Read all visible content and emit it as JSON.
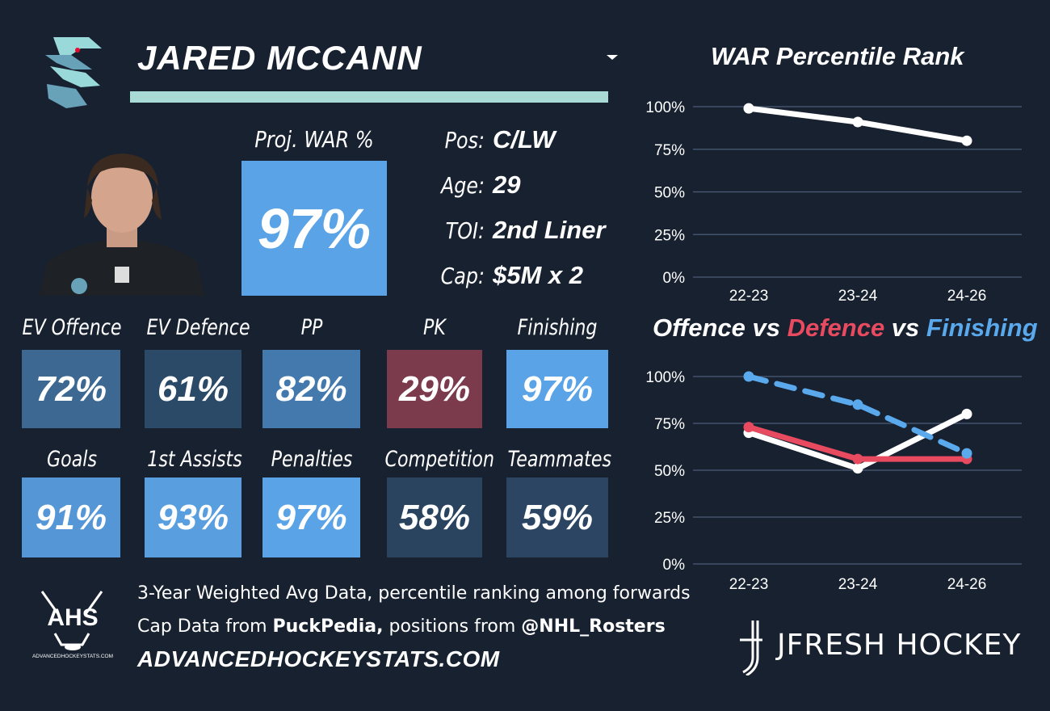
{
  "player": {
    "name": "JARED MCCANN",
    "proj_war_label": "Proj. WAR %",
    "proj_war_value": "97%",
    "info": [
      {
        "label": "Pos:",
        "value": "C/LW"
      },
      {
        "label": "Age:",
        "value": "29"
      },
      {
        "label": "TOI:",
        "value": "2nd Liner"
      },
      {
        "label": "Cap:",
        "value": "$5M x 2"
      }
    ]
  },
  "stats_row1": [
    {
      "label": "EV Offence",
      "value": "72%",
      "color": "#3c6891"
    },
    {
      "label": "EV Defence",
      "value": "61%",
      "color": "#2b4a68"
    },
    {
      "label": "PP",
      "value": "82%",
      "color": "#4379ad"
    },
    {
      "label": "PK",
      "value": "29%",
      "color": "#7b3b4d"
    },
    {
      "label": "Finishing",
      "value": "97%",
      "color": "#5aa3e6"
    }
  ],
  "stats_row2": [
    {
      "label": "Goals",
      "value": "91%",
      "color": "#5597d6"
    },
    {
      "label": "1st Assists",
      "value": "93%",
      "color": "#599fe0"
    },
    {
      "label": "Penalties",
      "value": "97%",
      "color": "#5aa3e6"
    },
    {
      "label": "Competition",
      "value": "58%",
      "color": "#2a4460"
    },
    {
      "label": "Teammates",
      "value": "59%",
      "color": "#2b4562"
    }
  ],
  "footer": {
    "line1": "3-Year Weighted Avg Data, percentile ranking among forwards",
    "line2_prefix": "Cap Data from ",
    "line2_bold1": "PuckPedia,",
    "line2_mid": " positions from ",
    "line2_bold2": "@NHL_Rosters",
    "site": "ADVANCEDHOCKEYSTATS.COM",
    "ahs_logo_text": "AHS",
    "ahs_logo_sub": "ADVANCEDHOCKEYSTATS.COM",
    "brand": "JFRESH HOCKEY"
  },
  "colors": {
    "offence": "#ffffff",
    "defence": "#e84a5f",
    "finishing": "#5aa9ec",
    "grid": "#4b5d78"
  },
  "chart_titles": {
    "war": "WAR Percentile Rank",
    "ovd_part1": "Offence",
    "ovd_vs1": " vs ",
    "ovd_part2": "Defence",
    "ovd_vs2": " vs ",
    "ovd_part3": "Finishing"
  },
  "chart_data": [
    {
      "type": "line",
      "title": "WAR Percentile Rank",
      "categories": [
        "22-23",
        "23-24",
        "24-26"
      ],
      "series": [
        {
          "values": [
            99,
            91,
            80
          ],
          "color": "#ffffff",
          "style": "solid"
        }
      ],
      "yticks": [
        "100%",
        "75%",
        "50%",
        "25%",
        "0%"
      ],
      "ylim": [
        0,
        100
      ],
      "grid": true
    },
    {
      "type": "line",
      "title": "Offence vs Defence vs Finishing",
      "categories": [
        "22-23",
        "23-24",
        "24-26"
      ],
      "series": [
        {
          "name": "Offence",
          "values": [
            70,
            51,
            80
          ],
          "color": "#ffffff",
          "style": "solid"
        },
        {
          "name": "Defence",
          "values": [
            73,
            56,
            56
          ],
          "color": "#e84a5f",
          "style": "solid"
        },
        {
          "name": "Finishing",
          "values": [
            100,
            85,
            59
          ],
          "color": "#5aa9ec",
          "style": "dashed"
        }
      ],
      "yticks": [
        "100%",
        "75%",
        "50%",
        "25%",
        "0%"
      ],
      "ylim": [
        0,
        100
      ],
      "grid": true
    }
  ]
}
